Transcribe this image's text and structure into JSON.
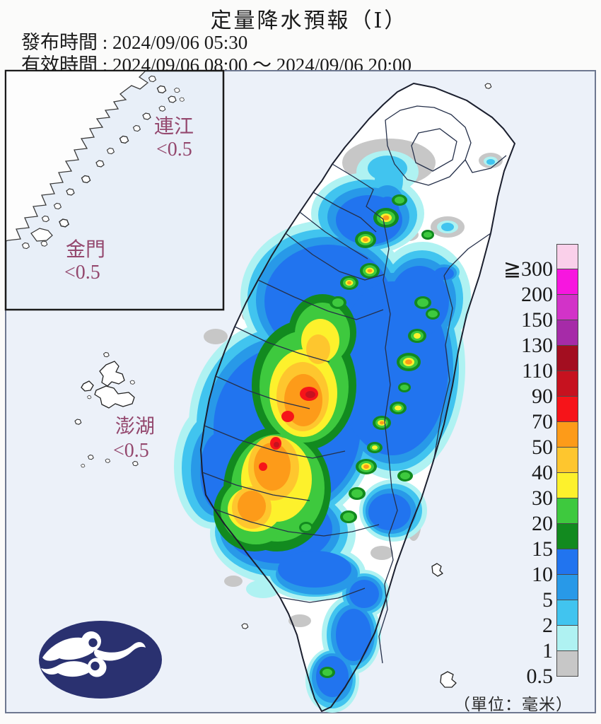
{
  "header": {
    "title": "定量降水預報（Ⅰ）",
    "issued_line": "發布時間 : 2024/09/06 05:30",
    "valid_line": "有效時間 : 2024/09/06 08:00 ～ 2024/09/06 20:00"
  },
  "map": {
    "region_labels": {
      "lianjiang": {
        "name": "連江",
        "value": "<0.5"
      },
      "kinmen": {
        "name": "金門",
        "value": "<0.5"
      },
      "penghu": {
        "name": "澎湖",
        "value": "<0.5"
      }
    },
    "unit_note": "（單位：毫米）"
  },
  "legend": {
    "entries": [
      {
        "band": "300",
        "label": "≧300",
        "color": "#FAD0EA"
      },
      {
        "band": "200",
        "label": "200",
        "color": "#F716DF"
      },
      {
        "band": "150",
        "label": "150",
        "color": "#D233C8"
      },
      {
        "band": "130",
        "label": "130",
        "color": "#A62BA8"
      },
      {
        "band": "110",
        "label": "110",
        "color": "#A30E20"
      },
      {
        "band": "90",
        "label": "90",
        "color": "#C6121F"
      },
      {
        "band": "70",
        "label": "70",
        "color": "#F61419"
      },
      {
        "band": "50",
        "label": "50",
        "color": "#FD9B19"
      },
      {
        "band": "40",
        "label": "40",
        "color": "#FEC62E"
      },
      {
        "band": "30",
        "label": "30",
        "color": "#FDF12C"
      },
      {
        "band": "20",
        "label": "20",
        "color": "#3EC93E"
      },
      {
        "band": "15",
        "label": "15",
        "color": "#128A1F"
      },
      {
        "band": "10",
        "label": "10",
        "color": "#2174EF"
      },
      {
        "band": "5",
        "label": "5",
        "color": "#2899E8"
      },
      {
        "band": "2",
        "label": "2",
        "color": "#41C4EF"
      },
      {
        "band": "1",
        "label": "1",
        "color": "#AFF2F2"
      },
      {
        "band": "0.5",
        "label": "0.5",
        "color": "#C7C7C7"
      }
    ]
  }
}
